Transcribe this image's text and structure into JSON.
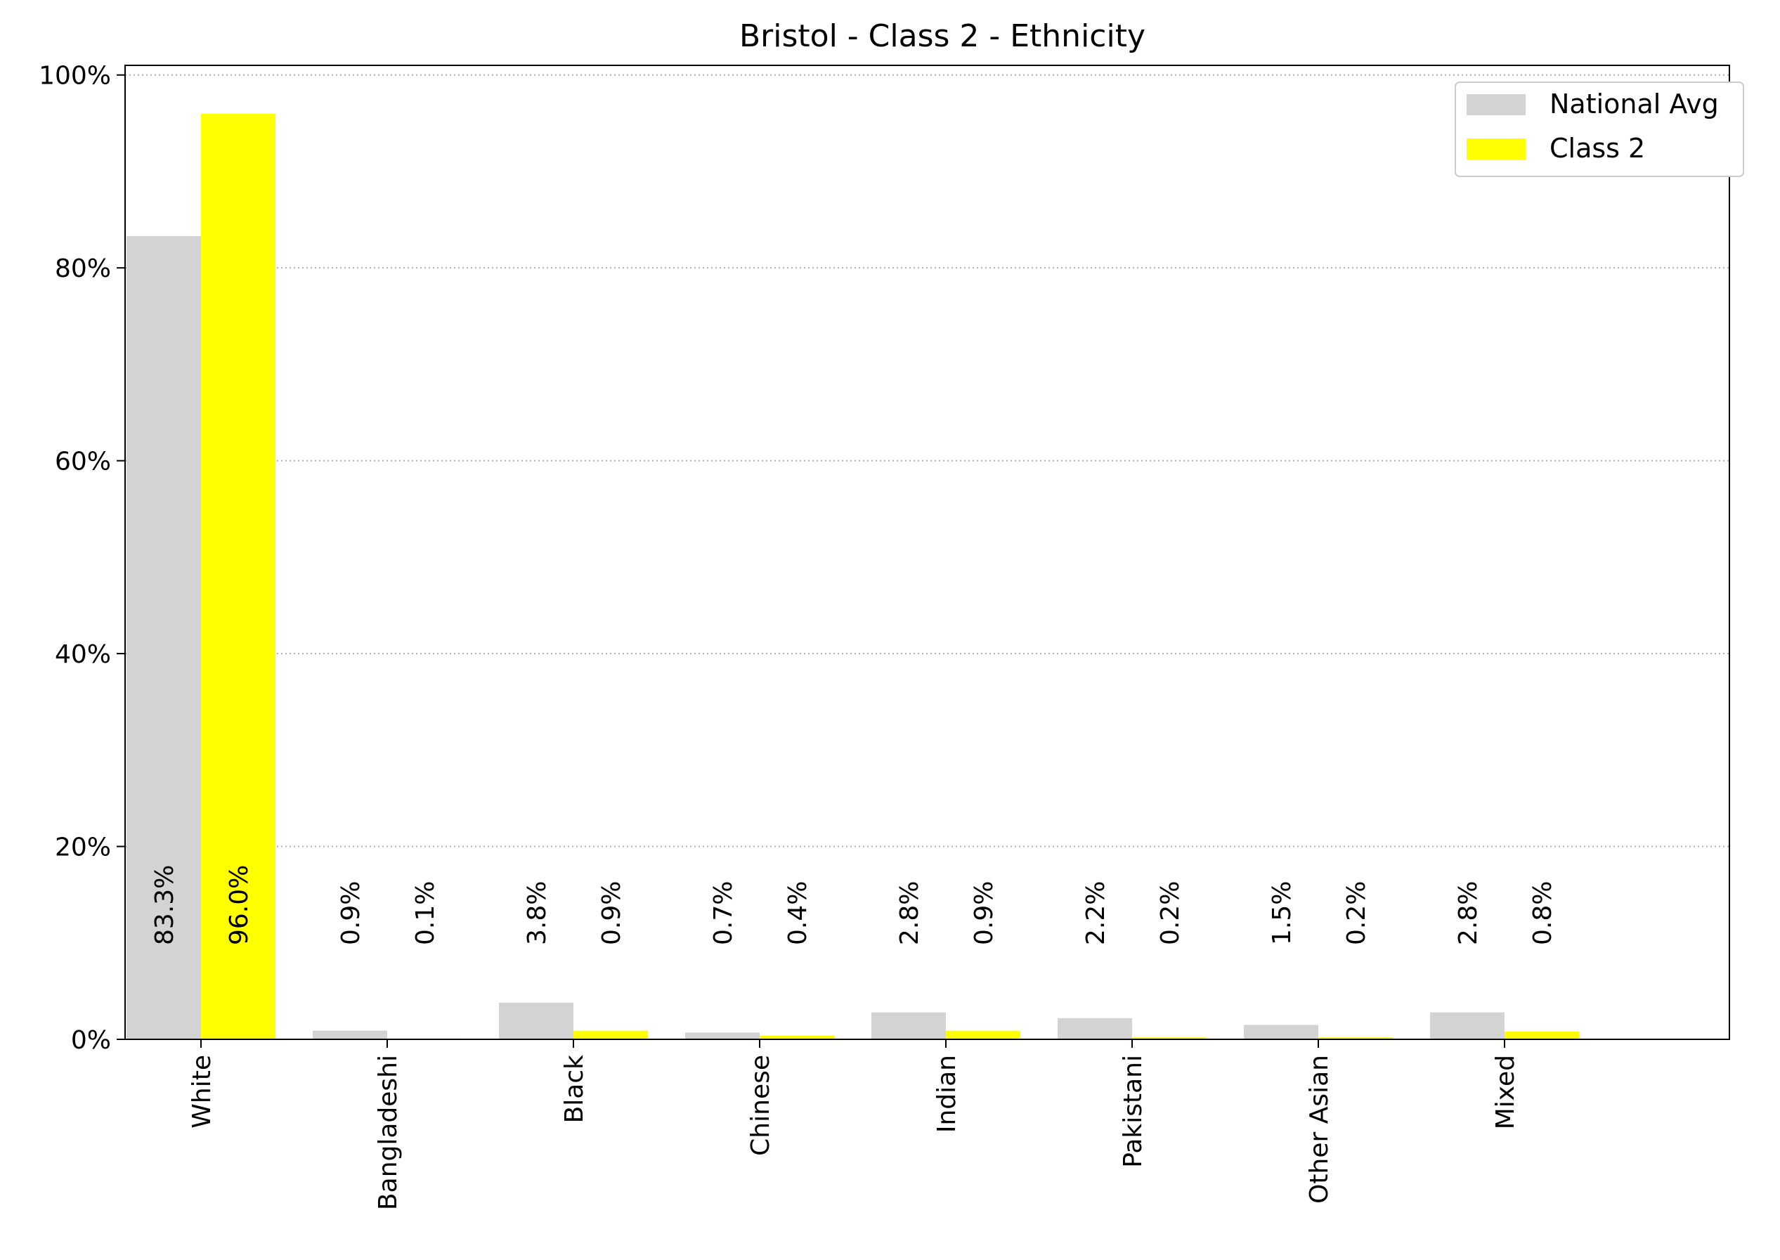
{
  "chart_data": {
    "type": "bar",
    "title": "Bristol - Class 2 - Ethnicity",
    "xlabel": "",
    "ylabel": "",
    "categories": [
      "White",
      "Bangladeshi",
      "Black",
      "Chinese",
      "Indian",
      "Pakistani",
      "Other Asian",
      "Mixed"
    ],
    "series": [
      {
        "name": "National Avg",
        "color": "#d3d3d3",
        "values": [
          83.3,
          0.9,
          3.8,
          0.7,
          2.8,
          2.2,
          1.5,
          2.8
        ],
        "labels": [
          "83.3%",
          "0.9%",
          "3.8%",
          "0.7%",
          "2.8%",
          "2.2%",
          "1.5%",
          "2.8%"
        ]
      },
      {
        "name": "Class 2",
        "color": "#ffff00",
        "values": [
          96.0,
          0.1,
          0.9,
          0.4,
          0.9,
          0.2,
          0.2,
          0.8
        ],
        "labels": [
          "96.0%",
          "0.1%",
          "0.9%",
          "0.4%",
          "0.9%",
          "0.2%",
          "0.2%",
          "0.8%"
        ]
      }
    ],
    "ylim": [
      0,
      101
    ],
    "yticks": [
      0,
      20,
      40,
      60,
      80,
      100
    ],
    "ytick_labels": [
      "0%",
      "20%",
      "40%",
      "60%",
      "80%",
      "100%"
    ],
    "grid": "y-dotted",
    "legend_position": "top-right"
  }
}
